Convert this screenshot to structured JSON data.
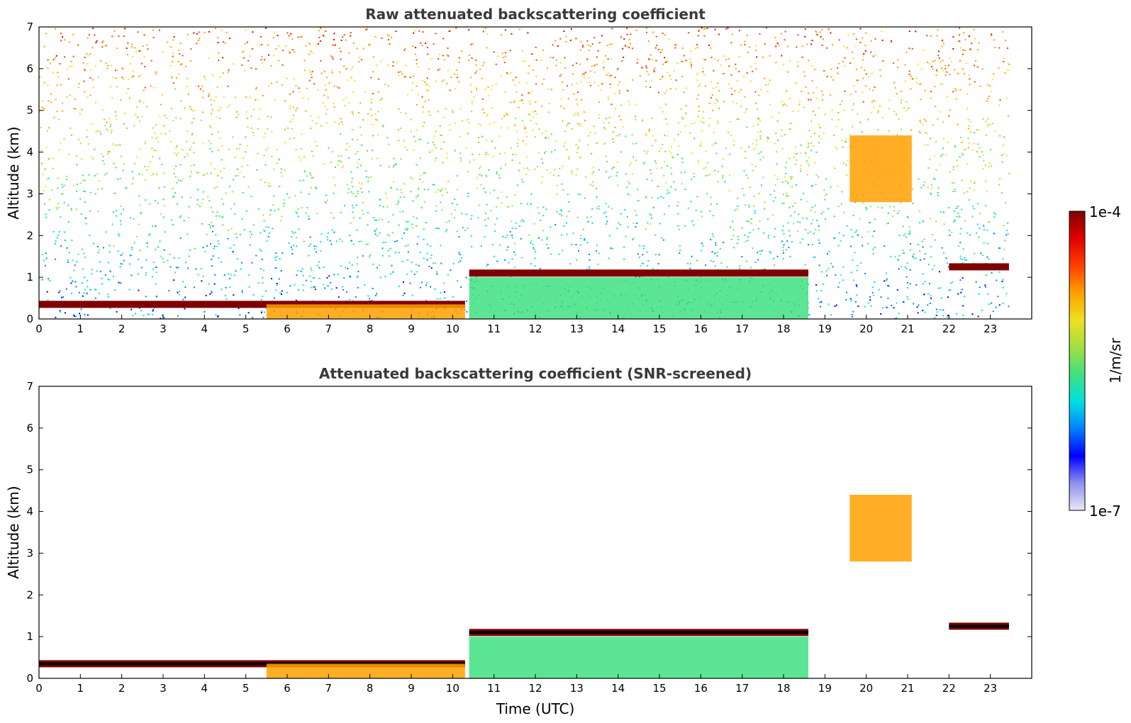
{
  "chart_data": [
    {
      "type": "heatmap",
      "title": "Raw attenuated backscattering coefficient",
      "xlabel": "",
      "ylabel": "Altitude (km)",
      "xlim": [
        0,
        24
      ],
      "ylim": [
        0,
        7
      ],
      "xticks": [
        0,
        1,
        2,
        3,
        4,
        5,
        6,
        7,
        8,
        9,
        10,
        11,
        12,
        13,
        14,
        15,
        16,
        17,
        18,
        19,
        20,
        21,
        22,
        23
      ],
      "yticks": [
        0,
        1,
        2,
        3,
        4,
        5,
        6,
        7
      ],
      "data_end_hour": 23.45,
      "background_noise": true,
      "layers": [
        {
          "name": "boundary-layer-top",
          "t_start": 0,
          "t_end": 10.3,
          "altitude_km": 0.35,
          "level": 1.0
        },
        {
          "name": "aerosol-mixed-layer",
          "t_start": 5.5,
          "t_end": 10.3,
          "altitude_km": [
            0,
            0.35
          ],
          "level": 0.75
        },
        {
          "name": "elevated-layer",
          "t_start": 10.4,
          "t_end": 18.6,
          "altitude_km": 1.1,
          "level": 1.0
        },
        {
          "name": "residual-layer",
          "t_start": 10.4,
          "t_end": 18.6,
          "altitude_km": [
            0,
            1.0
          ],
          "level": 0.45
        },
        {
          "name": "cloud-plume",
          "t_start": 19.6,
          "t_end": 21.1,
          "altitude_km": [
            2.8,
            4.4
          ],
          "level": 0.7
        },
        {
          "name": "high-layer",
          "t_start": 22.0,
          "t_end": 23.45,
          "altitude_km": 1.25,
          "level": 1.0
        }
      ]
    },
    {
      "type": "heatmap",
      "title": "Attenuated backscattering coefficient (SNR-screened)",
      "xlabel": "Time (UTC)",
      "ylabel": "Altitude (km)",
      "xlim": [
        0,
        24
      ],
      "ylim": [
        0,
        7
      ],
      "xticks": [
        0,
        1,
        2,
        3,
        4,
        5,
        6,
        7,
        8,
        9,
        10,
        11,
        12,
        13,
        14,
        15,
        16,
        17,
        18,
        19,
        20,
        21,
        22,
        23
      ],
      "yticks": [
        0,
        1,
        2,
        3,
        4,
        5,
        6,
        7
      ],
      "data_end_hour": 23.45,
      "background_noise": false,
      "layers": [
        {
          "name": "boundary-layer-top",
          "t_start": 0,
          "t_end": 10.3,
          "altitude_km": 0.35,
          "level": 1.0
        },
        {
          "name": "aerosol-mixed-layer",
          "t_start": 5.5,
          "t_end": 10.3,
          "altitude_km": [
            0,
            0.35
          ],
          "level": 0.75
        },
        {
          "name": "elevated-layer",
          "t_start": 10.4,
          "t_end": 18.6,
          "altitude_km": 1.1,
          "level": 1.0
        },
        {
          "name": "residual-layer",
          "t_start": 10.4,
          "t_end": 18.6,
          "altitude_km": [
            0,
            1.0
          ],
          "level": 0.45
        },
        {
          "name": "cloud-plume",
          "t_start": 19.6,
          "t_end": 21.1,
          "altitude_km": [
            2.8,
            4.4
          ],
          "level": 0.7
        },
        {
          "name": "high-layer",
          "t_start": 22.0,
          "t_end": 23.45,
          "altitude_km": 1.25,
          "level": 1.0
        }
      ]
    }
  ],
  "colorbar": {
    "label": "1/m/sr",
    "max_label": "1e-4",
    "min_label": "1e-7",
    "colors": [
      "#e8e8f8",
      "#9090ee",
      "#0000ff",
      "#0080ff",
      "#00e0e0",
      "#40e080",
      "#a0e040",
      "#f0e020",
      "#ffa000",
      "#ff4000",
      "#e00000",
      "#800000"
    ]
  }
}
